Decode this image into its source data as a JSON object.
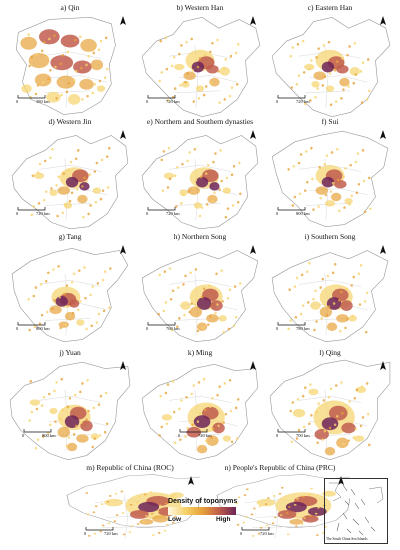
{
  "panels": [
    {
      "label": "a) Qin",
      "scale": "380 km"
    },
    {
      "label": "b) Western Han",
      "scale": "720 km"
    },
    {
      "label": "c) Eastern Han",
      "scale": "720 km"
    },
    {
      "label": "d) Western Jin",
      "scale": "720 km"
    },
    {
      "label": "e) Northern and Southern dynasties",
      "scale": "720 km"
    },
    {
      "label": "f) Sui",
      "scale": "800 km"
    },
    {
      "label": "g) Tang",
      "scale": "800 km"
    },
    {
      "label": "h) Northern Song",
      "scale": "760 km"
    },
    {
      "label": "i) Southern Song",
      "scale": "780 km"
    },
    {
      "label": "j) Yuan",
      "scale": "800 km"
    },
    {
      "label": "k) Ming",
      "scale": "720 km"
    },
    {
      "label": "l) Qing",
      "scale": "700 km"
    },
    {
      "label": "m) Republic of China (ROC)",
      "scale": "720 km"
    },
    {
      "label": "n) People's Republic of China (PRC)",
      "scale": "720 km"
    }
  ],
  "scale_zero": "0",
  "legend": {
    "title": "Density of toponyms",
    "low": "Low",
    "high": "High",
    "colors": [
      "#fffbe6",
      "#f6d36b",
      "#e7a23a",
      "#c15d4c",
      "#6d2358"
    ]
  },
  "inset": {
    "label": "The South China Sea Islands"
  }
}
